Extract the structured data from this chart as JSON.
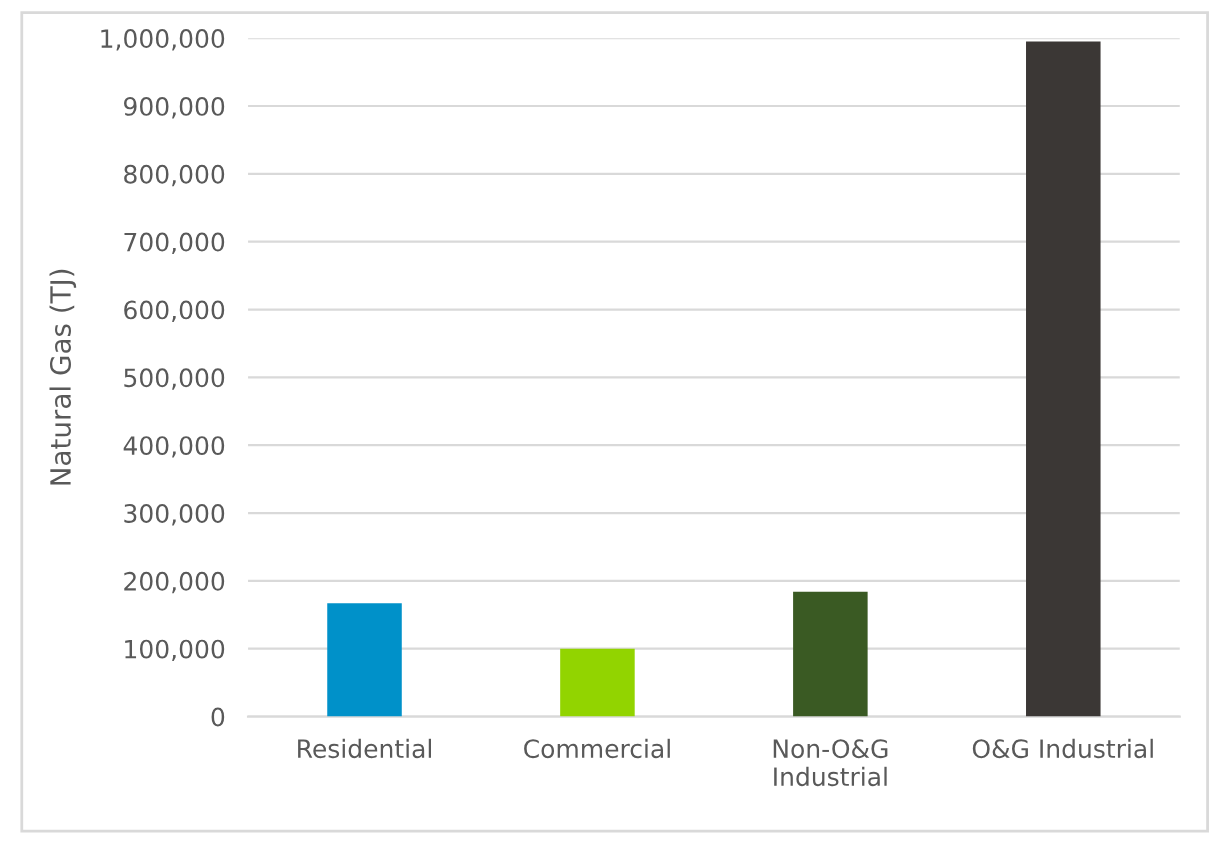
{
  "chart_data": {
    "type": "bar",
    "ylabel": "Natural Gas (TJ)",
    "categories": [
      "Residential",
      "Commercial",
      "Non-O&G\nIndustrial",
      "O&G Industrial"
    ],
    "values": [
      167000,
      100000,
      184000,
      995000
    ],
    "colors": [
      "#0091c9",
      "#92d400",
      "#3a5a23",
      "#3b3735"
    ],
    "ylim": [
      0,
      1000000
    ],
    "yticks": [
      {
        "value": 0,
        "label": "0"
      },
      {
        "value": 100000,
        "label": "100,000"
      },
      {
        "value": 200000,
        "label": "200,000"
      },
      {
        "value": 300000,
        "label": "300,000"
      },
      {
        "value": 400000,
        "label": "400,000"
      },
      {
        "value": 500000,
        "label": "500,000"
      },
      {
        "value": 600000,
        "label": "600,000"
      },
      {
        "value": 700000,
        "label": "700,000"
      },
      {
        "value": 800000,
        "label": "800,000"
      },
      {
        "value": 900000,
        "label": "900,000"
      },
      {
        "value": 1000000,
        "label": "1,000,000"
      }
    ],
    "grid": "y"
  }
}
